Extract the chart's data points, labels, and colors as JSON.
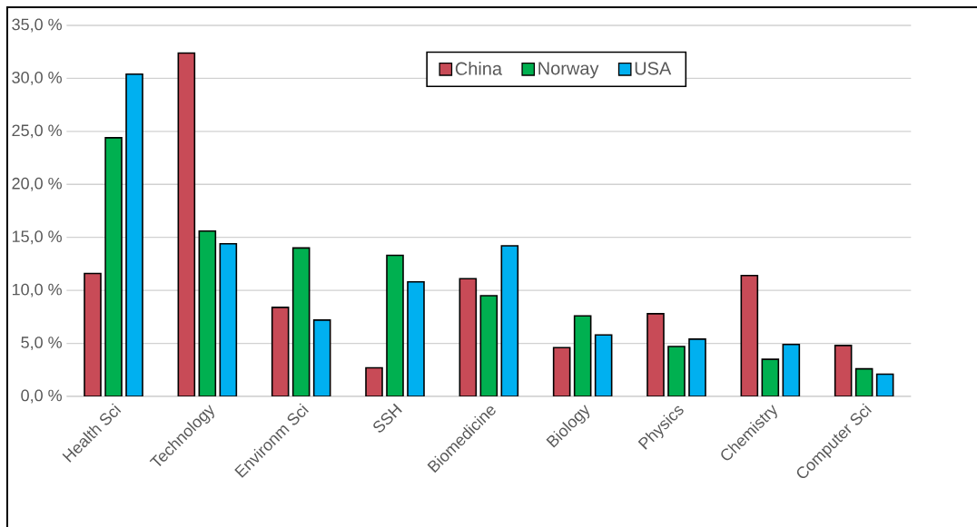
{
  "chart_data": {
    "type": "bar",
    "categories": [
      "Health Sci",
      "Technology",
      "Environm Sci",
      "SSH",
      "Biomedicine",
      "Biology",
      "Physics",
      "Chemistry",
      "Computer Sci"
    ],
    "series": [
      {
        "name": "China",
        "color": "#c84b57",
        "values": [
          11.6,
          32.4,
          8.4,
          2.7,
          11.1,
          4.6,
          7.8,
          11.4,
          4.8
        ]
      },
      {
        "name": "Norway",
        "color": "#00b050",
        "values": [
          24.4,
          15.6,
          14.0,
          13.3,
          9.5,
          7.6,
          4.7,
          3.5,
          2.6
        ]
      },
      {
        "name": "USA",
        "color": "#00b0f0",
        "values": [
          30.4,
          14.4,
          7.2,
          10.8,
          14.2,
          5.8,
          5.4,
          4.9,
          2.1
        ]
      }
    ],
    "ylim": [
      0,
      35
    ],
    "yticks": [
      {
        "value": 0,
        "label": "0,0 %"
      },
      {
        "value": 5,
        "label": "5,0 %"
      },
      {
        "value": 10,
        "label": "10,0 %"
      },
      {
        "value": 15,
        "label": "15,0 %"
      },
      {
        "value": 20,
        "label": "20,0 %"
      },
      {
        "value": 25,
        "label": "25,0 %"
      },
      {
        "value": 30,
        "label": "30,0 %"
      },
      {
        "value": 35,
        "label": "35,0 %"
      }
    ],
    "grid": "y",
    "legend": "top"
  }
}
